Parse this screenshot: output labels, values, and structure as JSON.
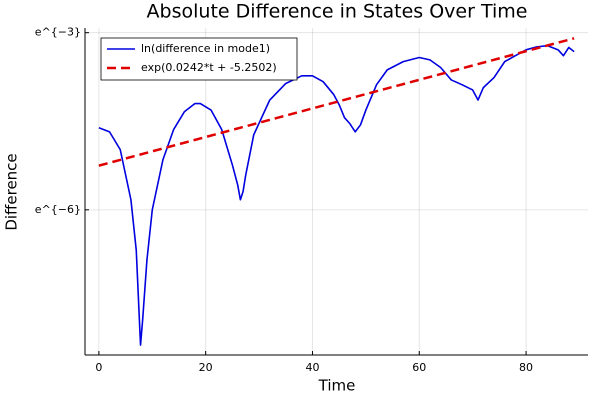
{
  "chart_data": {
    "type": "line",
    "title": "Absolute Difference in States Over Time",
    "xlabel": "Time",
    "ylabel": "Difference",
    "xlim": [
      -2.6,
      91.6
    ],
    "xticks": [
      0,
      20,
      40,
      60,
      80
    ],
    "ylim": [
      0.000212,
      0.0539
    ],
    "ylog": true,
    "yticks": [
      {
        "value": 0.049787,
        "label": "e^{−3}"
      },
      {
        "value": 0.0024788,
        "label": "e^{−6}"
      }
    ],
    "grid": true,
    "legend": "top-left",
    "series": [
      {
        "name": "ln(difference in mode1)",
        "color": "#0000e0",
        "dash": false,
        "x": [
          0,
          2,
          4,
          6,
          7,
          7.5,
          7.8,
          8.2,
          9,
          10,
          12,
          14,
          16,
          18,
          19,
          21,
          23,
          25,
          26,
          26.5,
          27,
          27.5,
          29,
          32,
          35,
          38,
          40,
          42,
          44,
          45,
          46,
          47,
          48,
          49,
          50,
          52,
          54,
          57,
          60,
          62,
          64,
          66,
          68,
          70,
          71,
          72,
          74,
          76,
          78,
          80,
          82,
          84,
          86,
          87,
          88,
          89
        ],
        "values": [
          0.00995,
          0.00928,
          0.00687,
          0.00294,
          0.00125,
          0.000457,
          0.000251,
          0.000386,
          0.00106,
          0.00248,
          0.0058,
          0.00966,
          0.01304,
          0.015,
          0.015,
          0.01343,
          0.00966,
          0.0053,
          0.00377,
          0.00294,
          0.00338,
          0.00447,
          0.00883,
          0.01592,
          0.02106,
          0.02399,
          0.02399,
          0.02171,
          0.01742,
          0.0147,
          0.0118,
          0.01067,
          0.00928,
          0.01046,
          0.01343,
          0.02064,
          0.02652,
          0.0305,
          0.03271,
          0.03143,
          0.0276,
          0.02237,
          0.02064,
          0.01887,
          0.01592,
          0.01964,
          0.02328,
          0.0305,
          0.03371,
          0.03725,
          0.03916,
          0.03996,
          0.03725,
          0.03371,
          0.03877,
          0.03615
        ]
      },
      {
        "name": "exp(0.0242*t + -5.2502)",
        "color": "#e00000",
        "dash": true,
        "x": [
          0,
          89
        ],
        "values": [
          0.005241,
          0.04524
        ]
      }
    ]
  }
}
